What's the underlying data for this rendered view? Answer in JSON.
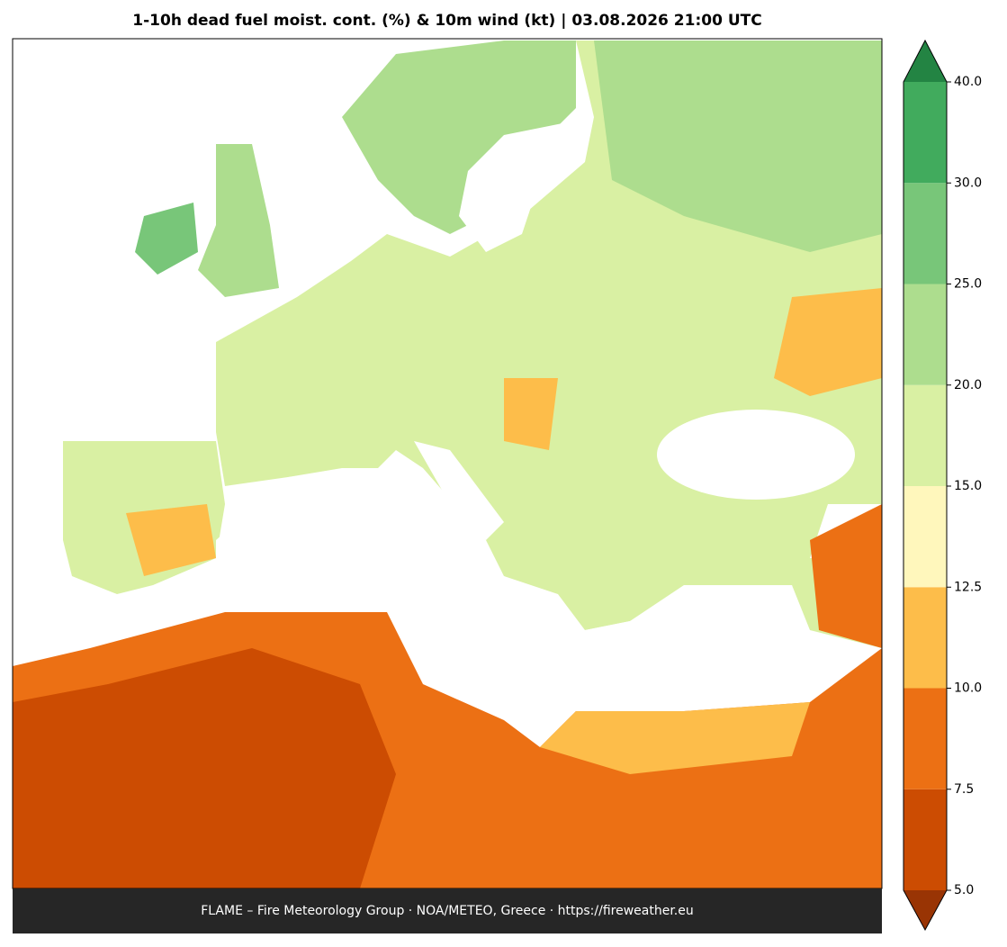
{
  "title": "1-10h dead fuel moist. cont. (%) & 10m wind (kt)  |  03.08.2026 21:00 UTC",
  "footer": "FLAME – Fire Meteorology Group · NOA/METEO, Greece · https://fireweather.eu",
  "colorbar": {
    "ticks": [
      {
        "value": 5,
        "label": "5.0"
      },
      {
        "value": 7.5,
        "label": "7.5"
      },
      {
        "value": 10,
        "label": "10.0"
      },
      {
        "value": 12.5,
        "label": "12.5"
      },
      {
        "value": 15,
        "label": "15.0"
      },
      {
        "value": 20,
        "label": "20.0"
      },
      {
        "value": 25,
        "label": "25.0"
      },
      {
        "value": 30,
        "label": "30.0"
      },
      {
        "value": 40,
        "label": "40.0"
      }
    ],
    "colors": [
      "#cc4c02",
      "#ec7014",
      "#fdbd4a",
      "#fff7bc",
      "#d9f0a3",
      "#addd8e",
      "#78c679",
      "#41ab5d"
    ],
    "under_color": "#993404",
    "over_color": "#238443"
  }
}
